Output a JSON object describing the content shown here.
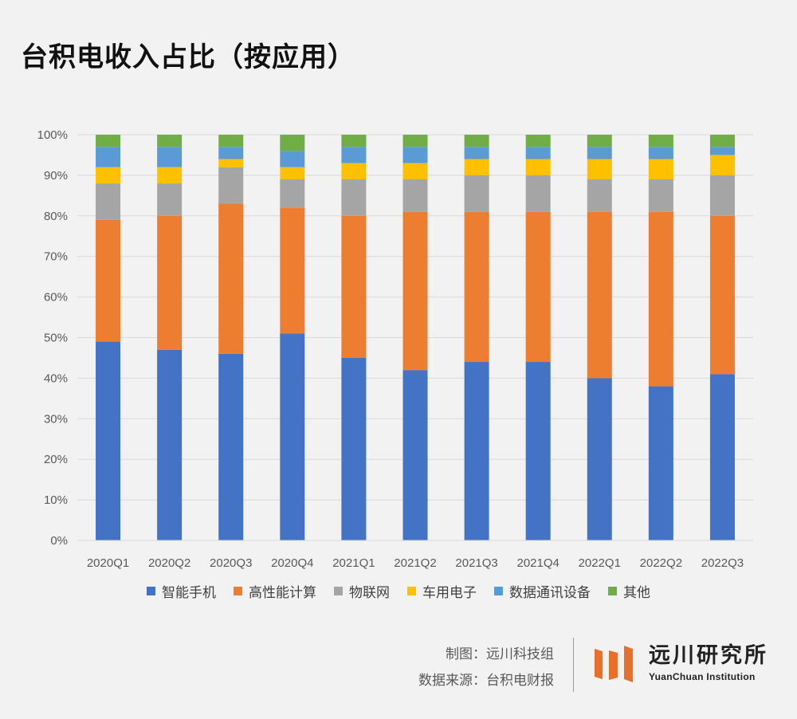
{
  "title": "台积电收入占比（按应用）",
  "chart_data": {
    "type": "bar",
    "stacked": true,
    "title": "台积电收入占比（按应用）",
    "categories": [
      "2020Q1",
      "2020Q2",
      "2020Q3",
      "2020Q4",
      "2021Q1",
      "2021Q2",
      "2021Q3",
      "2021Q4",
      "2022Q1",
      "2022Q2",
      "2022Q3"
    ],
    "ylim": [
      0,
      100
    ],
    "yticks": [
      0,
      10,
      20,
      30,
      40,
      50,
      60,
      70,
      80,
      90,
      100
    ],
    "ytick_labels": [
      "0%",
      "10%",
      "20%",
      "30%",
      "40%",
      "50%",
      "60%",
      "70%",
      "80%",
      "90%",
      "100%"
    ],
    "grid": true,
    "legend_position": "bottom",
    "series": [
      {
        "name": "智能手机",
        "color": "#4472c4",
        "values": [
          49,
          47,
          46,
          51,
          45,
          42,
          44,
          44,
          40,
          38,
          41
        ]
      },
      {
        "name": "高性能计算",
        "color": "#ed7d31",
        "values": [
          30,
          33,
          37,
          31,
          35,
          39,
          37,
          37,
          41,
          43,
          39
        ]
      },
      {
        "name": "物联网",
        "color": "#a5a5a5",
        "values": [
          9,
          8,
          9,
          7,
          9,
          8,
          9,
          9,
          8,
          8,
          10
        ]
      },
      {
        "name": "车用电子",
        "color": "#ffc000",
        "values": [
          4,
          4,
          2,
          3,
          4,
          4,
          4,
          4,
          5,
          5,
          5
        ]
      },
      {
        "name": "数据通讯设备",
        "color": "#5b9bd5",
        "values": [
          5,
          5,
          3,
          4,
          4,
          4,
          3,
          3,
          3,
          3,
          2
        ]
      },
      {
        "name": "其他",
        "color": "#70ad47",
        "values": [
          3,
          3,
          3,
          4,
          3,
          3,
          3,
          3,
          3,
          3,
          3
        ]
      }
    ]
  },
  "footer": {
    "maker": "制图：远川科技组",
    "source": "数据来源：台积电财报"
  },
  "logo": {
    "name_cn": "远川研究所",
    "name_en": "YuanChuan Institution",
    "color": "#e8702a"
  }
}
